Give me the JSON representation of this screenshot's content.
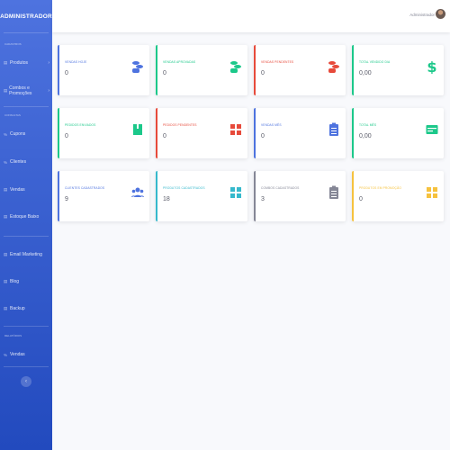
{
  "app": {
    "brand": "ADMINISTRADOR"
  },
  "sidebar": {
    "headings": {
      "cadastros": "CADASTROS",
      "consultas": "CONSULTAS",
      "relatorios": "RELATÓRIOS"
    },
    "items": [
      {
        "label": "Produtos",
        "icon": "box-icon"
      },
      {
        "label": "Combos e Promoções",
        "icon": "box-icon"
      },
      {
        "label": "Cupons",
        "icon": "percent-icon"
      },
      {
        "label": "Clientes",
        "icon": "percent-icon"
      },
      {
        "label": "Vendas",
        "icon": "list-icon"
      },
      {
        "label": "Estoque Baixo",
        "icon": "list-icon"
      },
      {
        "label": "Email Marketing",
        "icon": "list-icon"
      },
      {
        "label": "Blog",
        "icon": "list-icon"
      },
      {
        "label": "Backup",
        "icon": "list-icon"
      },
      {
        "label": "Vendas",
        "icon": "percent-icon"
      }
    ],
    "toggle_glyph": "‹"
  },
  "topbar": {
    "user_name": "Administrador"
  },
  "cards": [
    {
      "label": "VENDAS HOJE",
      "value": "0",
      "color": "#4e73df",
      "icon": "coins-icon"
    },
    {
      "label": "VENDAS APROVADAS",
      "value": "0",
      "color": "#1cc88a",
      "icon": "coins-icon"
    },
    {
      "label": "VENDAS PENDENTES",
      "value": "0",
      "color": "#e74a3b",
      "icon": "coins-icon"
    },
    {
      "label": "TOTAL VENDIDO DIA",
      "value": "0,00",
      "color": "#1cc88a",
      "icon": "dollar-icon"
    },
    {
      "label": "PEDIDOS ENVIADOS",
      "value": "0",
      "color": "#1cc88a",
      "icon": "box-icon"
    },
    {
      "label": "PEDIDOS PENDENTES",
      "value": "0",
      "color": "#e74a3b",
      "icon": "boxes-icon"
    },
    {
      "label": "VENDAS MÊS",
      "value": "0",
      "color": "#4e73df",
      "icon": "clipboard-icon"
    },
    {
      "label": "TOTAL MÊS",
      "value": "0,00",
      "color": "#1cc88a",
      "icon": "money-icon"
    },
    {
      "label": "CLIENTES CADASTRADOS",
      "value": "9",
      "color": "#4e73df",
      "icon": "users-icon"
    },
    {
      "label": "PRODUTOS CADASTRADOS",
      "value": "18",
      "color": "#36b9cc",
      "icon": "boxes-icon"
    },
    {
      "label": "COMBOS CADASTRADOS",
      "value": "3",
      "color": "#858796",
      "icon": "clipboard-icon"
    },
    {
      "label": "PRODUTOS EM PROMOÇÃO",
      "value": "0",
      "color": "#f6c23e",
      "icon": "boxes-icon"
    }
  ]
}
